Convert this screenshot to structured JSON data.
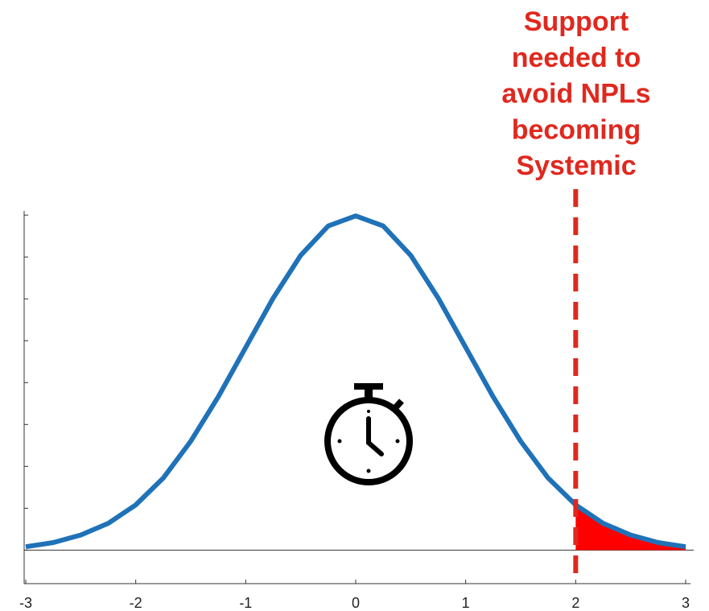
{
  "chart_data": {
    "type": "line",
    "annotation": [
      "Support",
      "needed to",
      "avoid NPLs",
      "becoming",
      "Systemic"
    ],
    "annotation_color": "#e0281e",
    "threshold": 2,
    "x": [
      -3,
      -2.75,
      -2.5,
      -2.25,
      -2,
      -1.75,
      -1.5,
      -1.25,
      -1,
      -0.75,
      -0.5,
      -0.25,
      0,
      0.25,
      0.5,
      0.75,
      1,
      1.25,
      1.5,
      1.75,
      2,
      2.25,
      2.5,
      2.75,
      3
    ],
    "series": [
      {
        "color": "#1f72b8",
        "values": [
          0.004,
          0.009,
          0.018,
          0.032,
          0.054,
          0.086,
          0.13,
          0.183,
          0.242,
          0.301,
          0.352,
          0.387,
          0.399,
          0.387,
          0.352,
          0.301,
          0.242,
          0.183,
          0.13,
          0.086,
          0.054,
          0.032,
          0.018,
          0.009,
          0.004
        ]
      }
    ],
    "tail_color": "#ff0000",
    "xlim": [
      -3,
      3
    ],
    "xticks": [
      -3,
      -2,
      -1,
      0,
      1,
      2,
      3
    ],
    "ylim": [
      -0.04,
      0.405
    ],
    "yticks": [
      0,
      0.05,
      0.1,
      0.15,
      0.2,
      0.25,
      0.3,
      0.35,
      0.4
    ]
  }
}
